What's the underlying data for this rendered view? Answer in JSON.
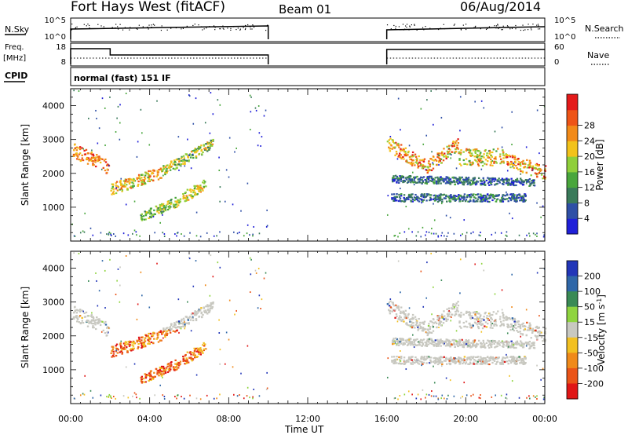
{
  "header": {
    "station": "Fort Hays West (fitACF)",
    "beam": "Beam 01",
    "date": "06/Aug/2014"
  },
  "panels": {
    "noise": {
      "left_label": "N.Sky",
      "right_label": "N.Search",
      "left_ticks": [
        "10^5",
        "10^0"
      ],
      "right_ticks": [
        "10^5",
        "10^0"
      ]
    },
    "freq": {
      "left_label_1": "Freq.",
      "left_label_2": "[MHz]",
      "right_label": "Nave",
      "left_ticks": [
        "18",
        "8"
      ],
      "right_ticks": [
        "60",
        "0"
      ]
    },
    "cpid": {
      "label": "CPID",
      "text": "normal (fast) 151 IF"
    }
  },
  "chart_data": [
    {
      "type": "heatmap",
      "title": "",
      "xlabel": "Time UT",
      "ylabel": "Slant Range [km]",
      "x_ticks": [
        "00:00",
        "04:00",
        "08:00",
        "12:00",
        "16:00",
        "20:00",
        "00:00"
      ],
      "x_range_hours": [
        0,
        24
      ],
      "ylim": [
        0,
        4500
      ],
      "y_ticks": [
        1000,
        2000,
        3000,
        4000
      ],
      "colorbar": {
        "label": "Power [dB]",
        "ticks": [
          "4",
          "8",
          "12",
          "16",
          "20",
          "24",
          "28"
        ],
        "colors": [
          "#1f1fd8",
          "#2e4fa6",
          "#3a7a5a",
          "#49a63c",
          "#8fcf3a",
          "#f2c21a",
          "#f28a18",
          "#ee5416",
          "#e41a1a"
        ]
      },
      "data_gaps_hours": [
        [
          10,
          16
        ]
      ]
    },
    {
      "type": "heatmap",
      "title": "",
      "xlabel": "Time UT",
      "ylabel": "Slant Range [km]",
      "x_ticks": [
        "00:00",
        "04:00",
        "08:00",
        "12:00",
        "16:00",
        "20:00",
        "00:00"
      ],
      "x_range_hours": [
        0,
        24
      ],
      "ylim": [
        0,
        4500
      ],
      "y_ticks": [
        1000,
        2000,
        3000,
        4000
      ],
      "colorbar": {
        "label": "Velocity [m s^-1]",
        "ticks": [
          "200",
          "100",
          "50",
          "15",
          "-15",
          "-50",
          "-100",
          "-200"
        ],
        "colors": [
          "#2236b8",
          "#2f67a8",
          "#3a8a55",
          "#8fd43f",
          "#c8c8c0",
          "#f2c021",
          "#f08a1a",
          "#ea5418",
          "#e01616"
        ]
      },
      "data_gaps_hours": [
        [
          10,
          16
        ]
      ]
    }
  ]
}
